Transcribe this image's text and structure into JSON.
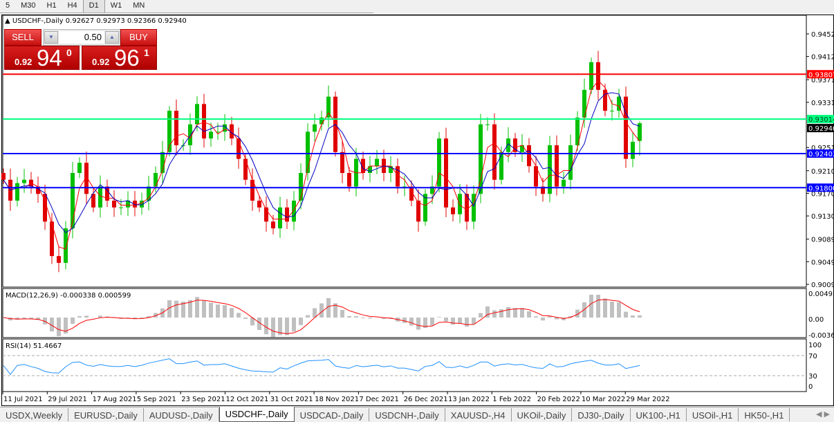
{
  "timeframes": [
    "5",
    "M30",
    "H1",
    "H4",
    "D1",
    "W1",
    "MN"
  ],
  "active_timeframe": "D1",
  "chart_title": "USDCHF-,Daily",
  "ohlc": "0.92627 0.92973 0.92366 0.92940",
  "trade_panel": {
    "sell_label": "SELL",
    "buy_label": "BUY",
    "lot": "0.50",
    "sell_prefix": "0.92",
    "sell_big": "94",
    "sell_sup": "0",
    "buy_prefix": "0.92",
    "buy_big": "96",
    "buy_sup": "1"
  },
  "colors": {
    "bull": "#00c000",
    "bear": "#e00000",
    "ma_fast": "#ff0000",
    "ma_slow": "#0000c0",
    "resistance": "#ff0000",
    "green_level": "#00ff7f",
    "support": "#0000ff",
    "macd_hist": "#c0c0c0",
    "macd_signal": "#ff0000",
    "rsi": "#1e90ff"
  },
  "chart_data": {
    "type": "candlestick",
    "symbol": "USDCHF-",
    "timeframe": "Daily",
    "ylim": [
      0.9009,
      0.9472
    ],
    "price_ticks": [
      "0.94520",
      "0.94120",
      "0.93710",
      "0.93310",
      "0.92510",
      "0.92100",
      "0.91700",
      "0.91300",
      "0.90890",
      "0.90490",
      "0.90090"
    ],
    "closes": [
      0.9194,
      0.9157,
      0.9188,
      0.9194,
      0.9182,
      0.9169,
      0.912,
      0.9059,
      0.9047,
      0.9108,
      0.9206,
      0.9224,
      0.9169,
      0.9145,
      0.9182,
      0.9157,
      0.9145,
      0.9145,
      0.9157,
      0.9145,
      0.9157,
      0.9182,
      0.9206,
      0.9243,
      0.9316,
      0.9255,
      0.9255,
      0.9292,
      0.9328,
      0.9267,
      0.9279,
      0.9279,
      0.9292,
      0.9267,
      0.9231,
      0.9194,
      0.9157,
      0.9145,
      0.912,
      0.9108,
      0.9145,
      0.912,
      0.9157,
      0.9206,
      0.9279,
      0.9292,
      0.9304,
      0.9341,
      0.9243,
      0.9206,
      0.9182,
      0.9231,
      0.9206,
      0.9218,
      0.9231,
      0.9206,
      0.9218,
      0.9182,
      0.9182,
      0.9157,
      0.912,
      0.9169,
      0.9182,
      0.9267,
      0.9145,
      0.9133,
      0.9169,
      0.912,
      0.9169,
      0.9292,
      0.9292,
      0.9194,
      0.9243,
      0.9267,
      0.9243,
      0.9255,
      0.9218,
      0.9182,
      0.9169,
      0.9255,
      0.9182,
      0.9194,
      0.9255,
      0.9304,
      0.9353,
      0.9402,
      0.9353,
      0.9316,
      0.9316,
      0.9341,
      0.9231,
      0.9261,
      0.9294
    ],
    "last_candle": {
      "open": 0.92627,
      "high": 0.92973,
      "low": 0.92366,
      "close": 0.9294
    },
    "horizontal_levels": [
      {
        "price": 0.93807,
        "label": "0.93807",
        "color": "#ff0000"
      },
      {
        "price": 0.93014,
        "label": "0.93014",
        "color": "#00ff7f"
      },
      {
        "price": 0.92403,
        "label": "0.92403",
        "color": "#0000ff"
      },
      {
        "price": 0.918,
        "label": "0.91800",
        "color": "#0000ff"
      }
    ],
    "current_price_label": "0.92940",
    "x_ticks": [
      "11 Jul 2021",
      "29 Jul 2021",
      "17 Aug 2021",
      "5 Sep 2021",
      "23 Sep 2021",
      "12 Oct 2021",
      "31 Oct 2021",
      "18 Nov 2021",
      "7 Dec 2021",
      "26 Dec 2021",
      "13 Jan 2022",
      "1 Feb 2022",
      "20 Feb 2022",
      "10 Mar 2022",
      "29 Mar 2022"
    ],
    "macd": {
      "label": "MACD(12,26,9) -0.000338 0.000599",
      "ticks": [
        "0.004926",
        "0.00",
        "-0.003610"
      ]
    },
    "rsi": {
      "label": "RSI(14) 51.4667",
      "ticks": [
        "100",
        "70",
        "30",
        "0"
      ],
      "levels": [
        70,
        30
      ]
    }
  },
  "symbol_tabs": [
    "USDX,Weekly",
    "EURUSD-,Daily",
    "AUDUSD-,Daily",
    "USDCHF-,Daily",
    "USDCAD-,Daily",
    "USDCNH-,Daily",
    "XAUUSD-,H4",
    "UKOil-,Daily",
    "DJ30-,Daily",
    "UK100-,H1",
    "USOil-,H1",
    "HK50-,H1"
  ],
  "active_tab": "USDCHF-,Daily"
}
